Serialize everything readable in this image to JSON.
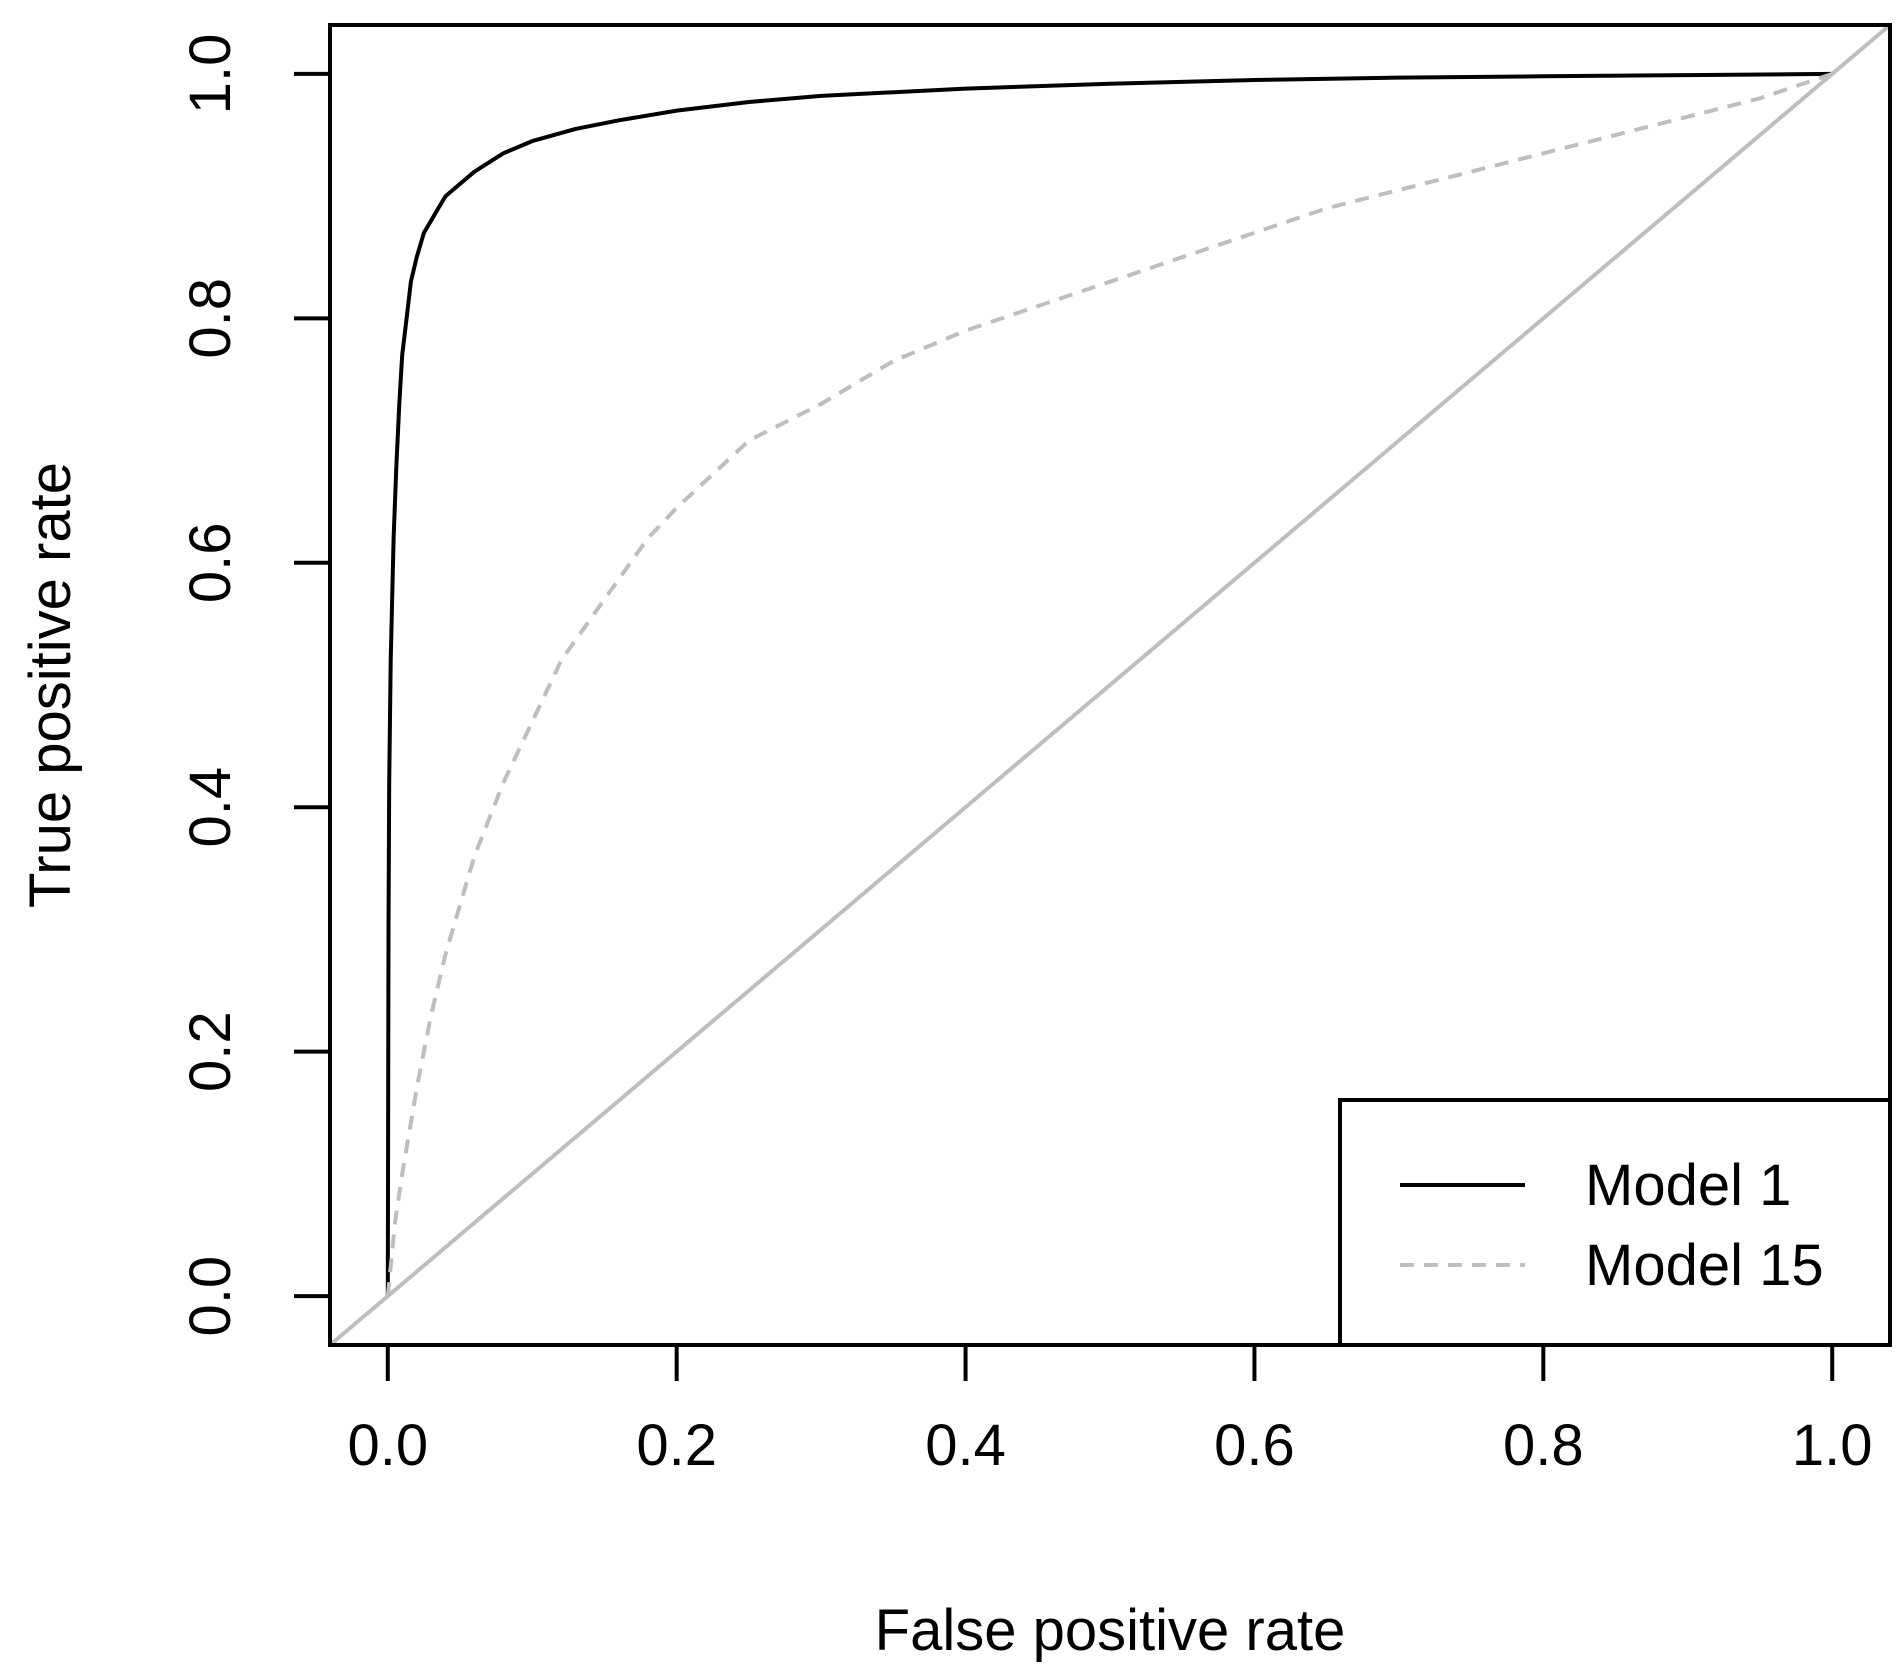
{
  "chart_data": {
    "type": "line",
    "title": "",
    "xlabel": "False positive rate",
    "ylabel": "True positive rate",
    "xlim": [
      -0.04,
      1.04
    ],
    "ylim": [
      -0.04,
      1.04
    ],
    "xticks": [
      "0.0",
      "0.2",
      "0.4",
      "0.6",
      "0.8",
      "1.0"
    ],
    "yticks": [
      "0.0",
      "0.2",
      "0.4",
      "0.6",
      "0.8",
      "1.0"
    ],
    "grid": false,
    "legend_position": "bottom-right",
    "series": [
      {
        "name": "Model 1",
        "color": "#000000",
        "style": "solid",
        "x": [
          0.0,
          0.0005,
          0.001,
          0.002,
          0.004,
          0.006,
          0.008,
          0.01,
          0.013,
          0.016,
          0.02,
          0.025,
          0.03,
          0.035,
          0.04,
          0.05,
          0.06,
          0.08,
          0.1,
          0.13,
          0.16,
          0.2,
          0.25,
          0.3,
          0.4,
          0.5,
          0.6,
          0.7,
          0.8,
          0.9,
          1.0
        ],
        "y": [
          0.0,
          0.3,
          0.42,
          0.52,
          0.62,
          0.68,
          0.73,
          0.77,
          0.8,
          0.83,
          0.85,
          0.87,
          0.88,
          0.89,
          0.9,
          0.91,
          0.92,
          0.935,
          0.945,
          0.955,
          0.962,
          0.97,
          0.977,
          0.982,
          0.988,
          0.992,
          0.995,
          0.997,
          0.998,
          0.999,
          1.0
        ]
      },
      {
        "name": "Model 15",
        "color": "#bebebe",
        "style": "dashed",
        "x": [
          0.0,
          0.005,
          0.01,
          0.02,
          0.03,
          0.04,
          0.05,
          0.06,
          0.08,
          0.1,
          0.12,
          0.15,
          0.18,
          0.2,
          0.25,
          0.3,
          0.35,
          0.4,
          0.45,
          0.5,
          0.55,
          0.6,
          0.65,
          0.7,
          0.75,
          0.8,
          0.85,
          0.9,
          0.95,
          1.0
        ],
        "y": [
          0.0,
          0.06,
          0.1,
          0.17,
          0.23,
          0.28,
          0.32,
          0.36,
          0.42,
          0.47,
          0.52,
          0.57,
          0.62,
          0.645,
          0.7,
          0.73,
          0.765,
          0.79,
          0.81,
          0.83,
          0.85,
          0.87,
          0.89,
          0.905,
          0.92,
          0.935,
          0.95,
          0.965,
          0.98,
          1.0
        ]
      },
      {
        "name": "",
        "color": "#bebebe",
        "style": "solid",
        "x": [
          -0.04,
          1.04
        ],
        "y": [
          -0.04,
          1.04
        ]
      }
    ]
  }
}
